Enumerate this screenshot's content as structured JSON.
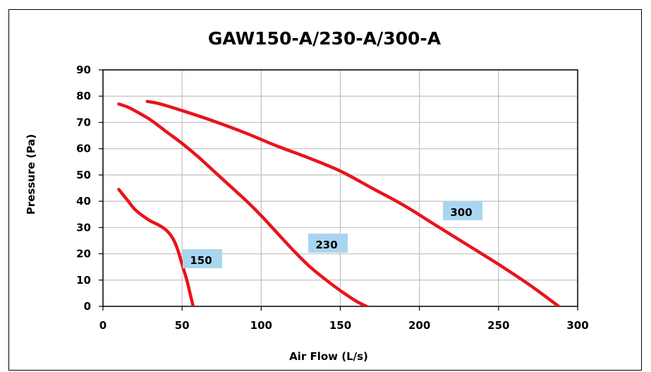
{
  "chart_data": {
    "type": "line",
    "title": "GAW150-A/230-A/300-A",
    "xlabel": "Air Flow  (L/s)",
    "ylabel": "Pressure (Pa)",
    "xlim": [
      0,
      300
    ],
    "ylim": [
      0,
      90
    ],
    "x_ticks": [
      "0",
      "50",
      "100",
      "150",
      "200",
      "250",
      "300"
    ],
    "y_ticks": [
      "0",
      "10",
      "20",
      "30",
      "40",
      "50",
      "60",
      "70",
      "80",
      "90"
    ],
    "grid": true,
    "line_color": "#e8141b",
    "label_box_color": "#a9d6ee",
    "series": [
      {
        "name": "150",
        "x": [
          10,
          12,
          16,
          20,
          25,
          30,
          35,
          40,
          44,
          47,
          50,
          53,
          55,
          57
        ],
        "y": [
          44.5,
          43,
          40,
          37,
          34.5,
          32.5,
          31,
          29,
          26,
          22,
          16,
          10,
          5,
          0
        ]
      },
      {
        "name": "230",
        "x": [
          10,
          15,
          20,
          30,
          40,
          50,
          60,
          70,
          80,
          90,
          100,
          110,
          120,
          130,
          140,
          150,
          160,
          170
        ],
        "y": [
          77,
          76,
          74.5,
          71,
          66.5,
          62,
          57,
          51.5,
          46,
          40.5,
          34.5,
          28,
          21.5,
          15.5,
          10.5,
          6,
          2,
          -1
        ]
      },
      {
        "name": "300",
        "x": [
          28,
          35,
          50,
          70,
          90,
          110,
          130,
          150,
          170,
          190,
          210,
          230,
          250,
          270,
          288
        ],
        "y": [
          78,
          77.2,
          74.5,
          70.5,
          66,
          61,
          56.5,
          51.5,
          45,
          38.5,
          31,
          23.5,
          16,
          8,
          0
        ]
      }
    ]
  }
}
